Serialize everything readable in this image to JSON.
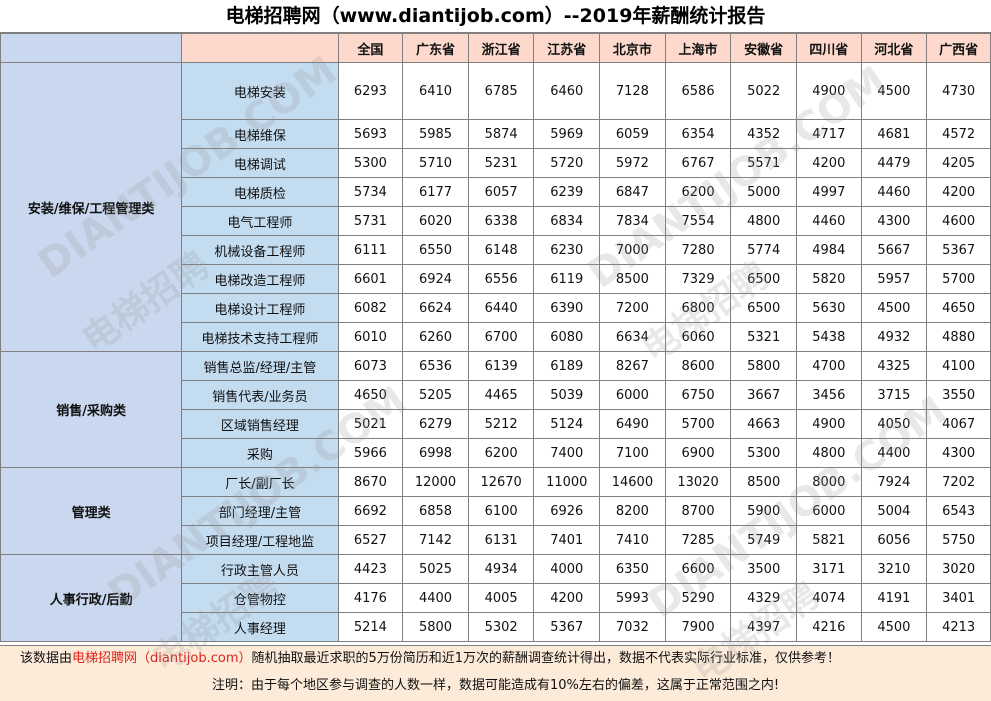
{
  "title": "电梯招聘网（www.diantijob.com）--2019年薪酬统计报告",
  "columns": [
    "全国",
    "广东省",
    "浙江省",
    "江苏省",
    "北京市",
    "上海市",
    "安徽省",
    "四川省",
    "河北省",
    "广西省"
  ],
  "groups": [
    {
      "category": "安装/维保/工程管理类",
      "rows": [
        {
          "role": "电梯安装",
          "values": [
            6293,
            6410,
            6785,
            6460,
            7128,
            6586,
            5022,
            4900,
            4500,
            4730
          ]
        },
        {
          "role": "电梯维保",
          "values": [
            5693,
            5985,
            5874,
            5969,
            6059,
            6354,
            4352,
            4717,
            4681,
            4572
          ]
        },
        {
          "role": "电梯调试",
          "values": [
            5300,
            5710,
            5231,
            5720,
            5972,
            6767,
            5571,
            4200,
            4479,
            4205
          ]
        },
        {
          "role": "电梯质检",
          "values": [
            5734,
            6177,
            6057,
            6239,
            6847,
            6200,
            5000,
            4997,
            4460,
            4200
          ]
        },
        {
          "role": "电气工程师",
          "values": [
            5731,
            6020,
            6338,
            6834,
            7834,
            7554,
            4800,
            4460,
            4300,
            4600
          ]
        },
        {
          "role": "机械设备工程师",
          "values": [
            6111,
            6550,
            6148,
            6230,
            7000,
            7280,
            5774,
            4984,
            5667,
            5367
          ]
        },
        {
          "role": "电梯改造工程师",
          "values": [
            6601,
            6924,
            6556,
            6119,
            8500,
            7329,
            6500,
            5820,
            5957,
            5700
          ]
        },
        {
          "role": "电梯设计工程师",
          "values": [
            6082,
            6624,
            6440,
            6390,
            7200,
            6800,
            6500,
            5630,
            4500,
            4650
          ]
        },
        {
          "role": "电梯技术支持工程师",
          "values": [
            6010,
            6260,
            6700,
            6080,
            6634,
            6060,
            5321,
            5438,
            4932,
            4880
          ]
        }
      ]
    },
    {
      "category": "销售/采购类",
      "rows": [
        {
          "role": "销售总监/经理/主管",
          "values": [
            6073,
            6536,
            6139,
            6189,
            8267,
            8600,
            5800,
            4700,
            4325,
            4100
          ]
        },
        {
          "role": "销售代表/业务员",
          "values": [
            4650,
            5205,
            4465,
            5039,
            6000,
            6750,
            3667,
            3456,
            3715,
            3550
          ]
        },
        {
          "role": "区域销售经理",
          "values": [
            5021,
            6279,
            5212,
            5124,
            6490,
            5700,
            4663,
            4900,
            4050,
            4067
          ]
        },
        {
          "role": "采购",
          "values": [
            5966,
            6998,
            6200,
            7400,
            7100,
            6900,
            5300,
            4800,
            4400,
            4300
          ]
        }
      ]
    },
    {
      "category": "管理类",
      "rows": [
        {
          "role": "厂长/副厂长",
          "values": [
            8670,
            12000,
            12670,
            11000,
            14600,
            13020,
            8500,
            8000,
            7924,
            7202
          ]
        },
        {
          "role": "部门经理/主管",
          "values": [
            6692,
            6858,
            6100,
            6926,
            8200,
            8700,
            5900,
            6000,
            5004,
            6543
          ]
        },
        {
          "role": "项目经理/工程地监",
          "values": [
            6527,
            7142,
            6131,
            7401,
            7410,
            7285,
            5749,
            5821,
            6056,
            5750
          ]
        }
      ]
    },
    {
      "category": "人事行政/后勤",
      "rows": [
        {
          "role": "行政主管人员",
          "values": [
            4423,
            5025,
            4934,
            4000,
            6350,
            6600,
            3500,
            3171,
            3210,
            3020
          ]
        },
        {
          "role": "仓管物控",
          "values": [
            4176,
            4400,
            4005,
            4200,
            5993,
            5290,
            4329,
            4074,
            4191,
            3401
          ]
        },
        {
          "role": "人事经理",
          "values": [
            5214,
            5800,
            5302,
            5367,
            7032,
            7900,
            4397,
            4216,
            4500,
            4213
          ]
        }
      ]
    }
  ],
  "notes": {
    "line1_prefix": "该数据由",
    "line1_link": "电梯招聘网（diantijob.com）",
    "line1_suffix": "随机抽取最近求职的5万份简历和近1万次的薪酬调查统计得出，数据不代表实际行业标准，仅供参考！",
    "line2": "注明：由于每个地区参与调查的人数一样，数据可能造成有10%左右的偏差，这属于正常范围之内!"
  },
  "watermark": [
    "DIANTIJOB.COM",
    "电梯招聘"
  ],
  "colors": {
    "header_bg": "#fcd9cc",
    "label_bg": "#c9d8ee",
    "notes_bg": "#fdebd9",
    "link_red": "#e0221b"
  }
}
